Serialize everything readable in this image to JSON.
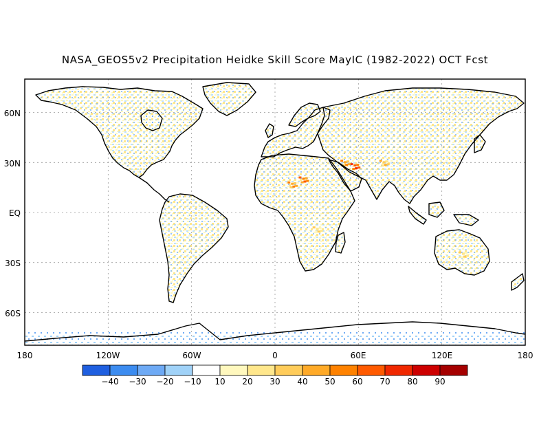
{
  "title": "NASA_GEOS5v2 Precipitation Heidke Skill Score MayIC (1982-2022) OCT Fcst",
  "lat_labels": [
    "60N",
    "30N",
    "EQ",
    "30S",
    "60S"
  ],
  "lon_labels": [
    "180",
    "120W",
    "60W",
    "0",
    "60E",
    "120E",
    "180"
  ],
  "colorbar": {
    "labels": [
      "-40",
      "-30",
      "-20",
      "-10",
      "10",
      "20",
      "30",
      "40",
      "50",
      "60",
      "70",
      "80",
      "90"
    ],
    "colors": [
      "#1f5fe0",
      "#3c8cf0",
      "#6eaaf5",
      "#a0d2f8",
      "#ffffff",
      "#fff8be",
      "#ffe78c",
      "#ffcc5a",
      "#ffaa28",
      "#ff8200",
      "#ff5a00",
      "#f02800",
      "#cd0000",
      "#a50000"
    ]
  },
  "field": {
    "description_none": "",
    "hotspots_positive": [
      {
        "lon": 57,
        "lat": 28,
        "value": 70
      },
      {
        "lon": 50,
        "lat": 30,
        "value": 50
      },
      {
        "lon": 20,
        "lat": 20,
        "value": 60
      },
      {
        "lon": 12,
        "lat": 17,
        "value": 55
      },
      {
        "lon": 78,
        "lat": 30,
        "value": 40
      },
      {
        "lon": 30,
        "lat": -10,
        "value": 30
      },
      {
        "lon": 135,
        "lat": -25,
        "value": 30
      }
    ]
  }
}
